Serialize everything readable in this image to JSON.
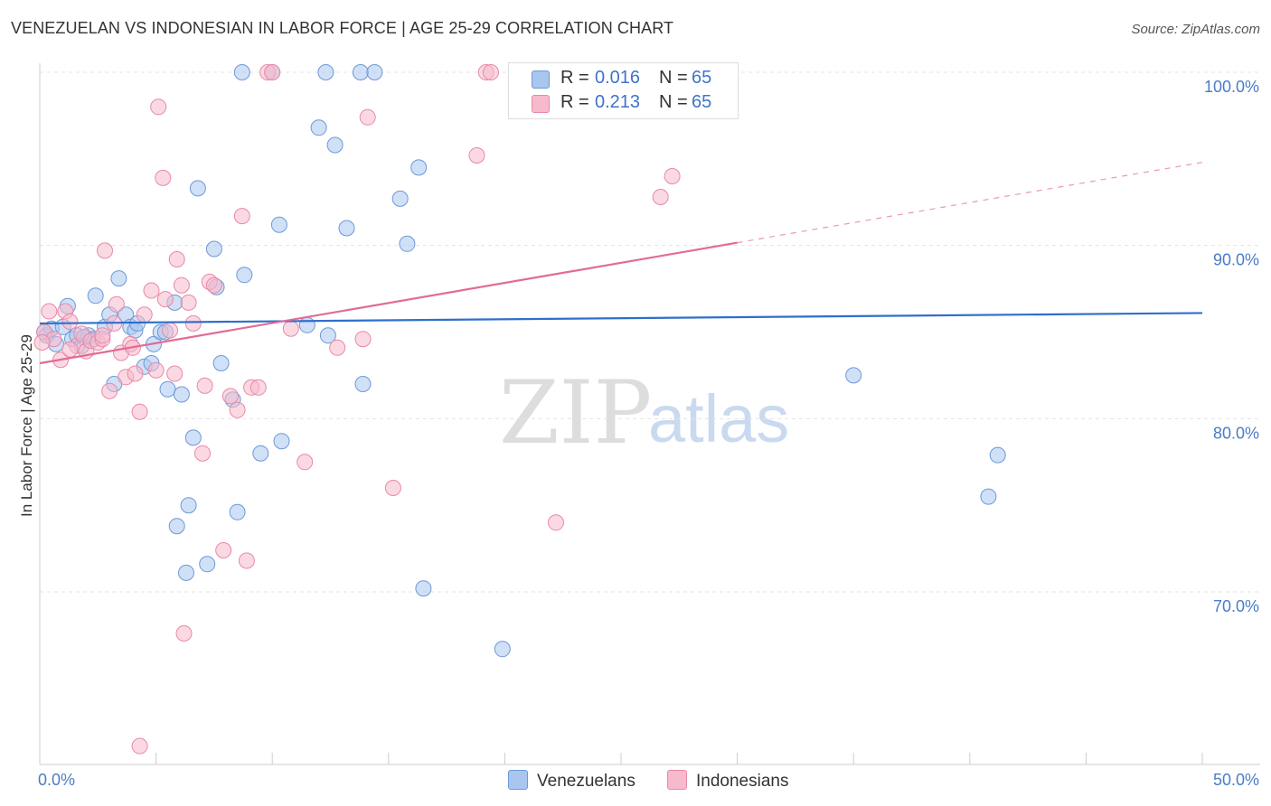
{
  "title": "VENEZUELAN VS INDONESIAN IN LABOR FORCE | AGE 25-29 CORRELATION CHART",
  "source": "Source: ZipAtlas.com",
  "watermark": {
    "part1": "ZIP",
    "part2": "atlas"
  },
  "legend_top": [
    {
      "r_label": "R =",
      "r_value": "0.016",
      "n_label": "N =",
      "n_value": "65",
      "color": "#a9c6ee",
      "edge": "#6d99d8"
    },
    {
      "r_label": "R =",
      "r_value": "0.213",
      "n_label": "N =",
      "n_value": "65",
      "color": "#f7b9cc",
      "edge": "#e889a8"
    }
  ],
  "legend_bottom": [
    {
      "label": "Venezuelans",
      "color": "#a9c6ee",
      "edge": "#6d99d8"
    },
    {
      "label": "Indonesians",
      "color": "#f7b9cc",
      "edge": "#e889a8"
    }
  ],
  "chart_data": {
    "type": "scatter",
    "title": "VENEZUELAN VS INDONESIAN IN LABOR FORCE | AGE 25-29 CORRELATION CHART",
    "xlabel": "",
    "ylabel": "In Labor Force | Age 25-29",
    "xlim": [
      0,
      50
    ],
    "ylim": [
      60,
      101.5
    ],
    "x_tick_labels": [
      {
        "value": 0,
        "label": "0.0%"
      },
      {
        "value": 50,
        "label": "50.0%"
      }
    ],
    "y_tick_labels": [
      {
        "value": 70,
        "label": "70.0%"
      },
      {
        "value": 80,
        "label": "80.0%"
      },
      {
        "value": 90,
        "label": "90.0%"
      },
      {
        "value": 100,
        "label": "100.0%"
      }
    ],
    "y_gridlines": [
      70,
      80,
      90,
      100
    ],
    "grid": true,
    "legend_placement": "top-center",
    "series": [
      {
        "name": "Venezuelans",
        "color": "#a9c6ee",
        "edge": "#6d99d8",
        "trend_color": "#2f6fcb",
        "trend": {
          "x0": 0,
          "y0": 85.5,
          "x1": 50,
          "y1": 86.1,
          "solid_until": 50
        },
        "points": [
          [
            0.3,
            84.8
          ],
          [
            0.5,
            85.2
          ],
          [
            0.7,
            84.3
          ],
          [
            1.0,
            85.3
          ],
          [
            1.2,
            86.5
          ],
          [
            1.4,
            84.6
          ],
          [
            1.6,
            84.8
          ],
          [
            1.8,
            84.2
          ],
          [
            2.1,
            84.8
          ],
          [
            2.3,
            84.6
          ],
          [
            2.4,
            87.1
          ],
          [
            2.8,
            85.3
          ],
          [
            3.0,
            86.0
          ],
          [
            3.2,
            82.0
          ],
          [
            3.4,
            88.1
          ],
          [
            3.7,
            86.0
          ],
          [
            3.9,
            85.3
          ],
          [
            4.1,
            85.1
          ],
          [
            4.2,
            85.5
          ],
          [
            4.5,
            83.0
          ],
          [
            4.8,
            83.2
          ],
          [
            4.9,
            84.3
          ],
          [
            5.2,
            85.0
          ],
          [
            5.4,
            85.0
          ],
          [
            5.5,
            81.7
          ],
          [
            5.8,
            86.7
          ],
          [
            6.1,
            81.4
          ],
          [
            6.3,
            71.1
          ],
          [
            6.4,
            75.0
          ],
          [
            5.9,
            73.8
          ],
          [
            6.6,
            78.9
          ],
          [
            6.8,
            93.3
          ],
          [
            7.2,
            71.6
          ],
          [
            7.5,
            89.8
          ],
          [
            7.6,
            87.6
          ],
          [
            7.8,
            83.2
          ],
          [
            8.3,
            81.1
          ],
          [
            8.5,
            74.6
          ],
          [
            8.8,
            88.3
          ],
          [
            8.7,
            100.0
          ],
          [
            9.5,
            78.0
          ],
          [
            10.0,
            100.0
          ],
          [
            10.3,
            91.2
          ],
          [
            10.4,
            78.7
          ],
          [
            11.5,
            85.4
          ],
          [
            12.0,
            96.8
          ],
          [
            12.3,
            100.0
          ],
          [
            12.4,
            84.8
          ],
          [
            12.7,
            95.8
          ],
          [
            13.2,
            91.0
          ],
          [
            13.9,
            82.0
          ],
          [
            13.8,
            100.0
          ],
          [
            14.4,
            100.0
          ],
          [
            15.5,
            92.7
          ],
          [
            15.8,
            90.1
          ],
          [
            16.3,
            94.5
          ],
          [
            16.5,
            70.2
          ],
          [
            19.9,
            66.7
          ],
          [
            21.5,
            100.0
          ],
          [
            28.0,
            100.0
          ],
          [
            35.0,
            82.5
          ],
          [
            41.2,
            77.9
          ],
          [
            40.8,
            75.5
          ],
          [
            0.2,
            85.0
          ],
          [
            1.9,
            84.7
          ]
        ]
      },
      {
        "name": "Indonesians",
        "color": "#f7b9cc",
        "edge": "#e889a8",
        "trend_color": "#e26b94",
        "trend": {
          "x0": 0,
          "y0": 83.2,
          "x1": 50,
          "y1": 94.8,
          "solid_until": 30
        },
        "points": [
          [
            0.2,
            85.0
          ],
          [
            0.4,
            86.2
          ],
          [
            0.6,
            84.6
          ],
          [
            0.9,
            83.4
          ],
          [
            1.1,
            86.2
          ],
          [
            1.3,
            85.6
          ],
          [
            1.6,
            84.2
          ],
          [
            1.8,
            84.9
          ],
          [
            2.0,
            83.9
          ],
          [
            2.2,
            84.5
          ],
          [
            2.5,
            84.4
          ],
          [
            2.7,
            84.6
          ],
          [
            2.8,
            89.7
          ],
          [
            3.0,
            81.6
          ],
          [
            3.2,
            85.5
          ],
          [
            3.3,
            86.6
          ],
          [
            3.5,
            83.8
          ],
          [
            3.7,
            82.4
          ],
          [
            3.9,
            84.3
          ],
          [
            4.0,
            84.1
          ],
          [
            4.1,
            82.6
          ],
          [
            4.3,
            80.4
          ],
          [
            4.5,
            86.0
          ],
          [
            4.8,
            87.4
          ],
          [
            5.0,
            82.8
          ],
          [
            5.1,
            98.0
          ],
          [
            5.3,
            93.9
          ],
          [
            5.4,
            86.9
          ],
          [
            5.6,
            85.1
          ],
          [
            5.8,
            82.6
          ],
          [
            5.9,
            89.2
          ],
          [
            6.1,
            87.7
          ],
          [
            6.4,
            86.7
          ],
          [
            6.6,
            85.5
          ],
          [
            7.0,
            78.0
          ],
          [
            7.1,
            81.9
          ],
          [
            7.3,
            87.9
          ],
          [
            7.5,
            87.7
          ],
          [
            7.9,
            72.4
          ],
          [
            8.2,
            81.3
          ],
          [
            8.5,
            80.5
          ],
          [
            8.7,
            91.7
          ],
          [
            8.9,
            71.8
          ],
          [
            9.1,
            81.8
          ],
          [
            9.4,
            81.8
          ],
          [
            9.8,
            100.0
          ],
          [
            10.0,
            100.0
          ],
          [
            10.8,
            85.2
          ],
          [
            11.4,
            77.5
          ],
          [
            12.8,
            84.1
          ],
          [
            13.9,
            84.6
          ],
          [
            14.1,
            97.4
          ],
          [
            15.2,
            76.0
          ],
          [
            18.8,
            95.2
          ],
          [
            19.2,
            100.0
          ],
          [
            19.4,
            100.0
          ],
          [
            21.0,
            100.0
          ],
          [
            22.2,
            74.0
          ],
          [
            26.7,
            92.8
          ],
          [
            27.2,
            94.0
          ],
          [
            4.3,
            61.1
          ],
          [
            6.2,
            67.6
          ],
          [
            2.7,
            84.8
          ],
          [
            1.3,
            84.0
          ],
          [
            0.1,
            84.4
          ]
        ]
      }
    ]
  }
}
